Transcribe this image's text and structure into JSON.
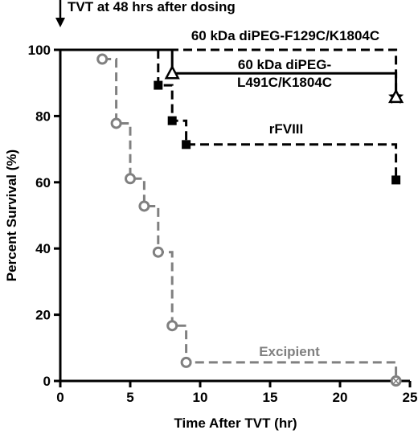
{
  "chart_data": {
    "type": "line",
    "title": "",
    "top_annotation": "TVT at 48 hrs after dosing",
    "xlabel": "Time After TVT (hr)",
    "ylabel": "Percent Survival (%)",
    "xlim": [
      0,
      25
    ],
    "ylim": [
      0,
      100
    ],
    "xticks": [
      0,
      5,
      10,
      15,
      20,
      25
    ],
    "yticks": [
      0,
      20,
      40,
      60,
      80,
      100
    ],
    "grid": false,
    "series": [
      {
        "name": "60 kDa diPEG-F129C/K1804C",
        "label_lines": [
          "60 kDa diPEG-F129C/K1804C"
        ],
        "color": "#000000",
        "dash": "dashed",
        "marker": "star",
        "steps": [
          [
            0,
            100
          ],
          [
            24,
            100
          ],
          [
            24,
            85.7
          ]
        ],
        "markers": [
          [
            24,
            85.7
          ]
        ]
      },
      {
        "name": "60 kDa diPEG-L491C/K1804C",
        "label_lines": [
          "60 kDa diPEG-",
          "L491C/K1804C"
        ],
        "color": "#000000",
        "dash": "solid",
        "marker": "triangle-open",
        "steps": [
          [
            0,
            100
          ],
          [
            8,
            100
          ],
          [
            8,
            92.9
          ],
          [
            24,
            92.9
          ],
          [
            24,
            85.7
          ]
        ],
        "markers": [
          [
            8,
            92.9
          ],
          [
            24,
            85.7
          ]
        ]
      },
      {
        "name": "rFVIII",
        "label_lines": [
          "rFVIII"
        ],
        "color": "#000000",
        "dash": "dashed",
        "marker": "square",
        "steps": [
          [
            7,
            100
          ],
          [
            7,
            89.3
          ],
          [
            8,
            89.3
          ],
          [
            8,
            78.6
          ],
          [
            9,
            78.6
          ],
          [
            9,
            71.4
          ],
          [
            24,
            71.4
          ],
          [
            24,
            60.7
          ]
        ],
        "markers": [
          [
            7,
            89.3
          ],
          [
            8,
            78.6
          ],
          [
            9,
            71.4
          ],
          [
            24,
            60.7
          ]
        ]
      },
      {
        "name": "Excipient",
        "label_lines": [
          "Excipient"
        ],
        "color": "#808080",
        "dash": "dashed",
        "marker": "circle-open",
        "steps": [
          [
            3,
            97.2
          ],
          [
            4,
            97.2
          ],
          [
            4,
            77.8
          ],
          [
            5,
            77.8
          ],
          [
            5,
            61.1
          ],
          [
            6,
            61.1
          ],
          [
            6,
            52.8
          ],
          [
            7,
            52.8
          ],
          [
            7,
            38.9
          ],
          [
            8,
            38.9
          ],
          [
            8,
            16.7
          ],
          [
            9,
            16.7
          ],
          [
            9,
            5.6
          ],
          [
            24,
            5.6
          ],
          [
            24,
            0
          ]
        ],
        "markers": [
          [
            3,
            97.2
          ],
          [
            4,
            77.8
          ],
          [
            5,
            61.1
          ],
          [
            6,
            52.8
          ],
          [
            7,
            38.9
          ],
          [
            8,
            16.7
          ],
          [
            9,
            5.6
          ],
          [
            24,
            0
          ]
        ]
      }
    ]
  }
}
